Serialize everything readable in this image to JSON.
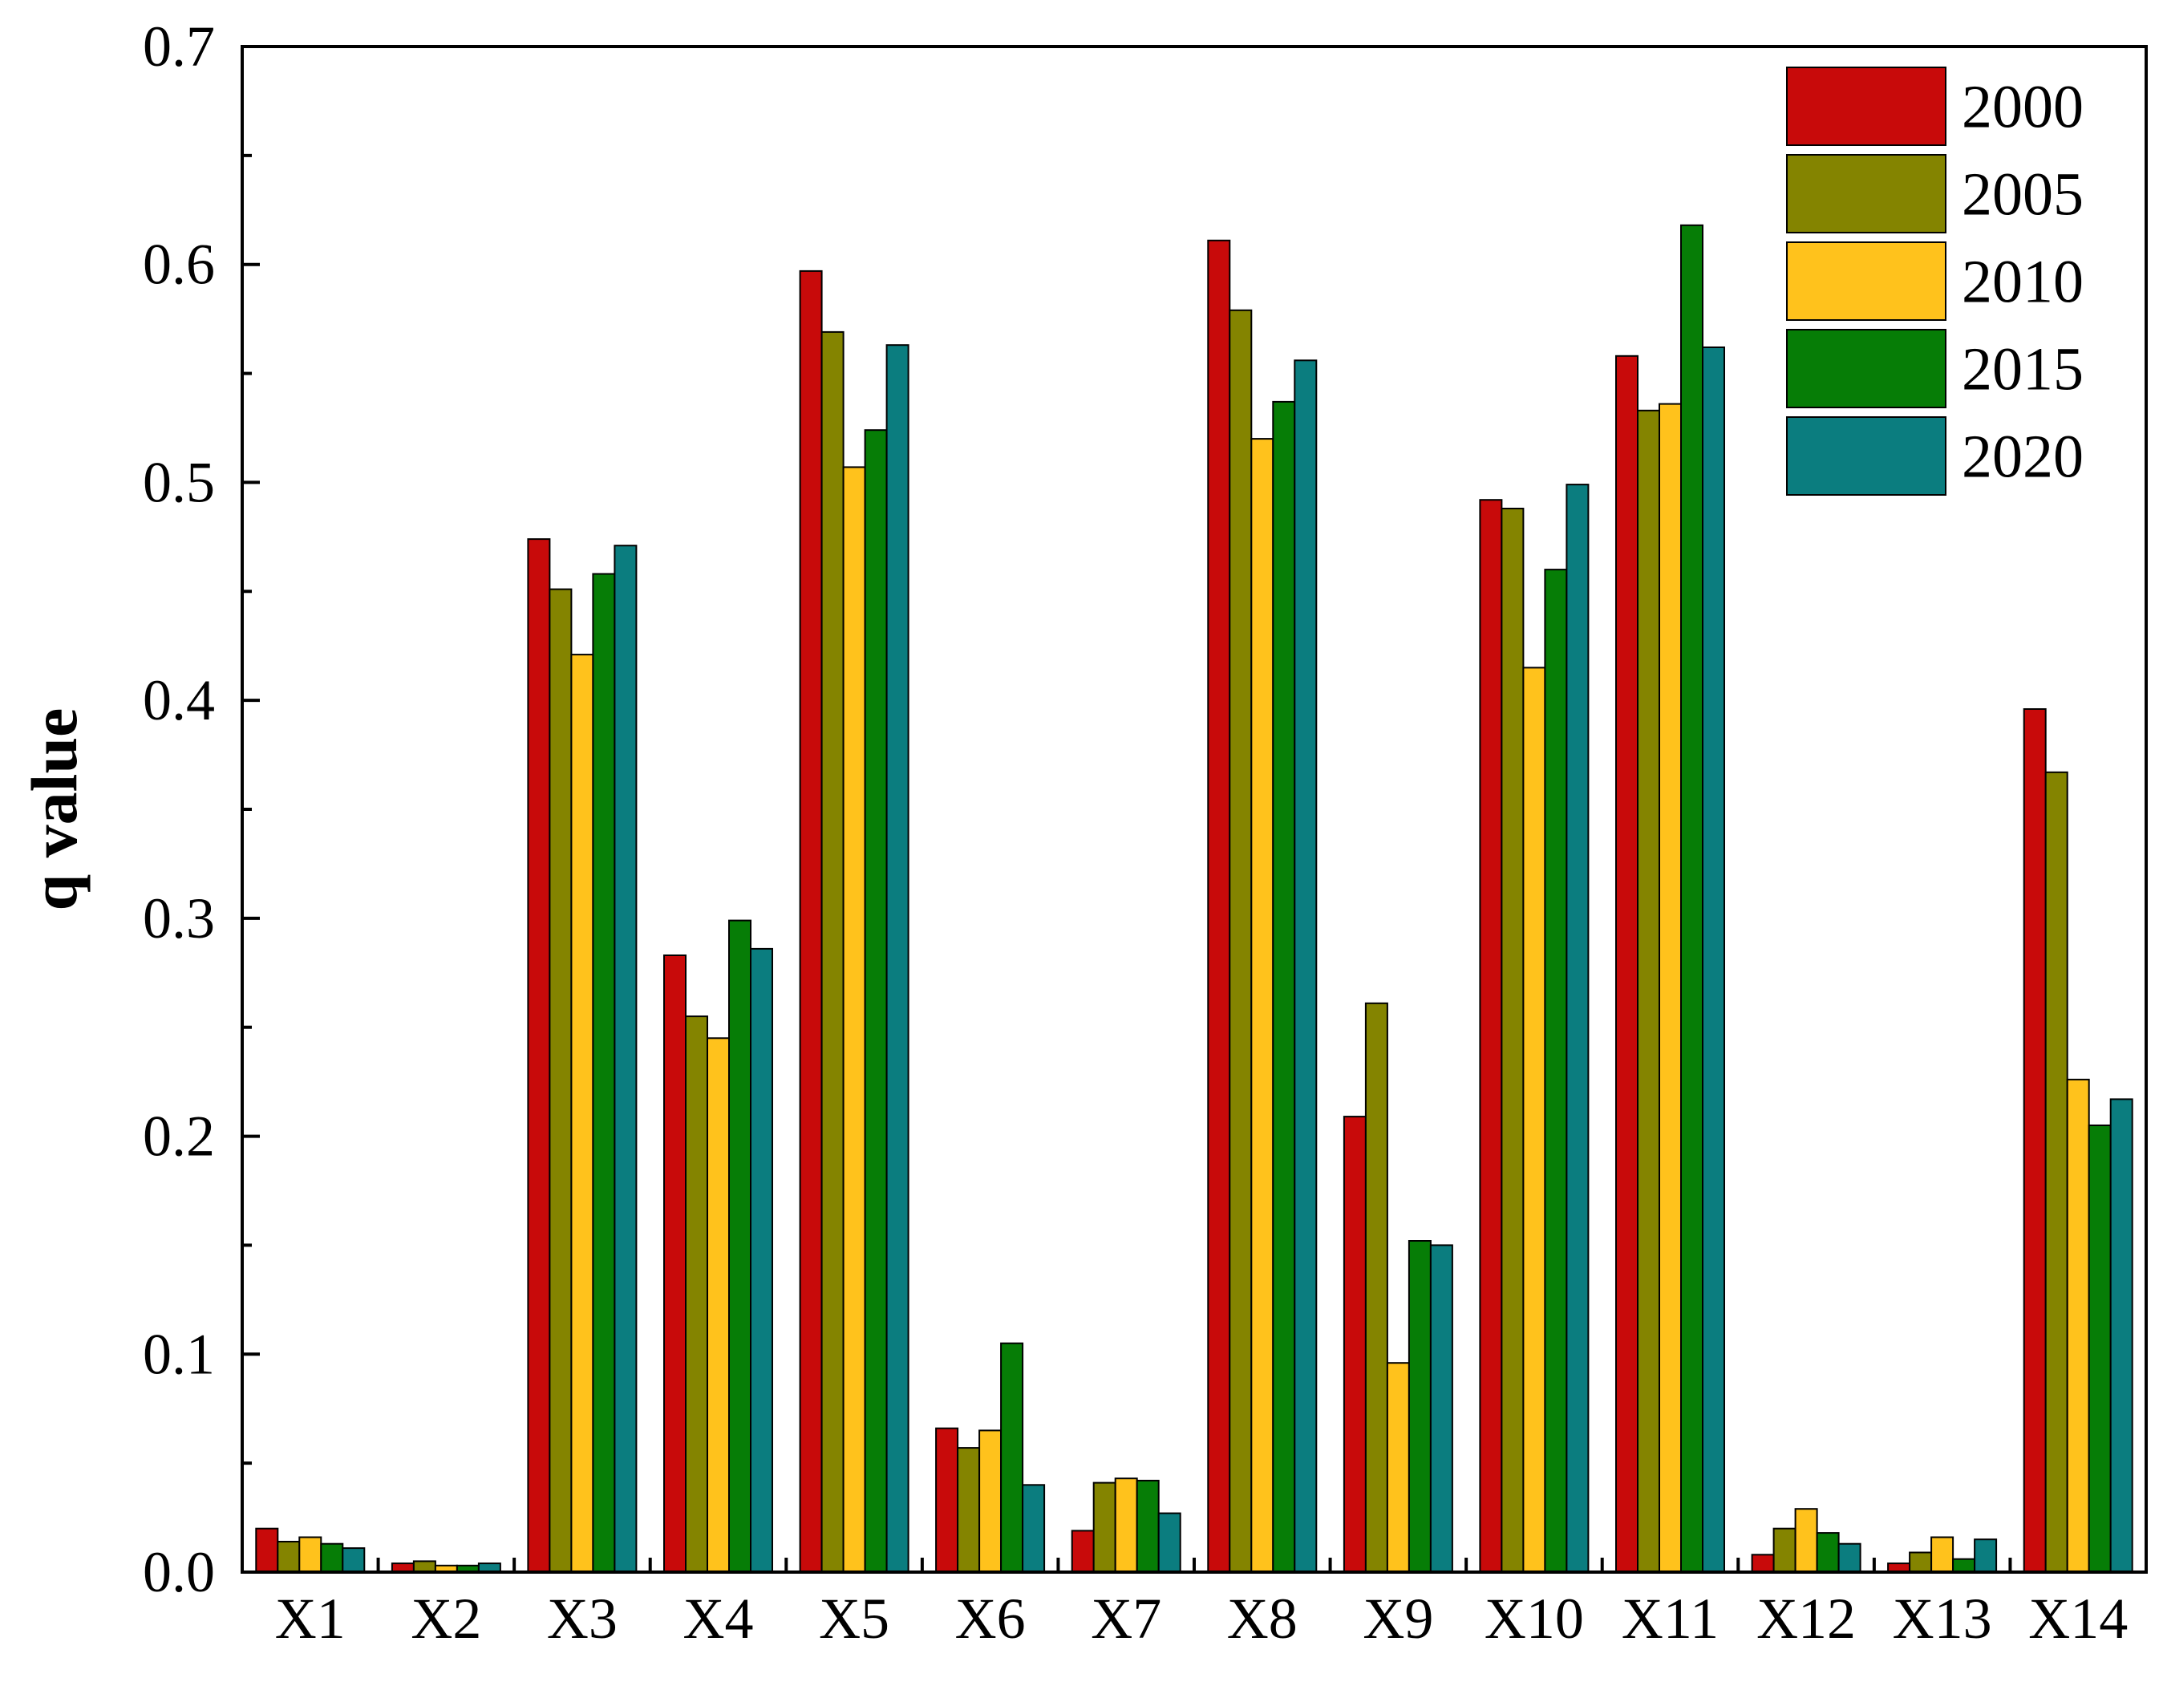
{
  "chart_data": {
    "type": "bar",
    "title": "",
    "xlabel": "",
    "ylabel": "q value",
    "ylim": [
      0,
      0.7
    ],
    "yticks": [
      0.0,
      0.1,
      0.2,
      0.3,
      0.4,
      0.5,
      0.6,
      0.7
    ],
    "ytick_labels": [
      "0.0",
      "0.1",
      "0.2",
      "0.3",
      "0.4",
      "0.5",
      "0.6",
      "0.7"
    ],
    "grid": false,
    "legend_position": "top-right",
    "categories": [
      "X1",
      "X2",
      "X3",
      "X4",
      "X5",
      "X6",
      "X7",
      "X8",
      "X9",
      "X10",
      "X11",
      "X12",
      "X13",
      "X14"
    ],
    "series": [
      {
        "name": "2000",
        "color": "#c80a0a",
        "values": [
          0.02,
          0.004,
          0.474,
          0.283,
          0.597,
          0.066,
          0.019,
          0.611,
          0.209,
          0.492,
          0.558,
          0.008,
          0.004,
          0.396
        ]
      },
      {
        "name": "2005",
        "color": "#848400",
        "values": [
          0.014,
          0.005,
          0.451,
          0.255,
          0.569,
          0.057,
          0.041,
          0.579,
          0.261,
          0.488,
          0.533,
          0.02,
          0.009,
          0.367
        ]
      },
      {
        "name": "2010",
        "color": "#ffc21c",
        "values": [
          0.016,
          0.003,
          0.421,
          0.245,
          0.507,
          0.065,
          0.043,
          0.52,
          0.096,
          0.415,
          0.536,
          0.029,
          0.016,
          0.226
        ]
      },
      {
        "name": "2015",
        "color": "#067d06",
        "values": [
          0.013,
          0.003,
          0.458,
          0.299,
          0.524,
          0.105,
          0.042,
          0.537,
          0.152,
          0.46,
          0.618,
          0.018,
          0.006,
          0.205
        ]
      },
      {
        "name": "2020",
        "color": "#0b7d7f",
        "values": [
          0.011,
          0.004,
          0.471,
          0.286,
          0.563,
          0.04,
          0.027,
          0.556,
          0.15,
          0.499,
          0.562,
          0.013,
          0.015,
          0.217
        ]
      }
    ]
  }
}
